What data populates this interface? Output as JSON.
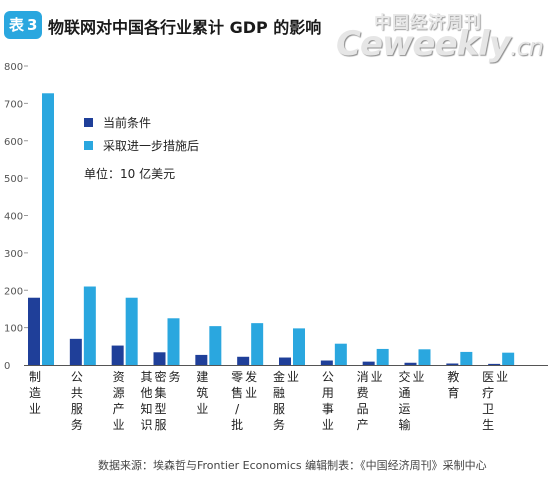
{
  "header": {
    "badge_prefix": "表",
    "badge_number": "3",
    "title": "物联网对中国各行业累计 GDP 的影响"
  },
  "brand": {
    "cn_name": "中国经济周刊",
    "en_name": "Ceweekly",
    "en_suffix": ".cn"
  },
  "colors": {
    "series_current": "#1f3f99",
    "series_measures": "#2aa7df",
    "badge": "#2aa7df"
  },
  "chart_data": {
    "type": "bar",
    "categories": [
      "制造业",
      "公共服务",
      "资源产业",
      "其他知识密集型服务",
      "建筑业",
      "零售批发业",
      "金融服务业",
      "公用事业",
      "消费品产业",
      "交通运输业",
      "教育",
      "医疗卫生业"
    ],
    "category_labels": [
      "制造业",
      "公共服务",
      "资源产业",
      "其他知识密集型服务",
      "建筑业",
      "零售/批发业",
      "金融服务业",
      "公用事业",
      "消费品产业",
      "交通运输业",
      "教育",
      "医疗卫生业"
    ],
    "series": [
      {
        "name": "当前条件",
        "values": [
          180,
          70,
          52,
          34,
          27,
          22,
          20,
          12,
          9,
          6,
          4,
          3
        ]
      },
      {
        "name": "采取进一步措施后",
        "values": [
          727,
          210,
          180,
          125,
          104,
          112,
          98,
          57,
          43,
          42,
          35,
          33
        ]
      }
    ],
    "yticks": [
      0,
      100,
      200,
      300,
      400,
      500,
      600,
      700,
      800
    ],
    "ylim": [
      0,
      800
    ],
    "unit_note": "单位：10 亿美元",
    "legend_position": "upper-left inside plot",
    "grid": false
  },
  "source": "数据来源：埃森哲与Frontier Economics 编辑制表：《中国经济周刊》采制中心"
}
